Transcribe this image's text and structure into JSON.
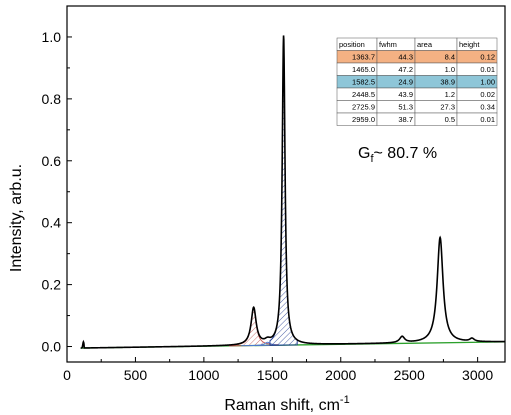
{
  "chart_data": {
    "type": "line",
    "xlabel": "Raman shift, cm",
    "xlabel_sup": "-1",
    "ylabel": "Intensity, arb.u.",
    "xlim": [
      0,
      3200
    ],
    "ylim": [
      -0.05,
      1.1
    ],
    "x_ticks": [
      0,
      500,
      1000,
      1500,
      2000,
      2500,
      3000
    ],
    "y_ticks": [
      0.0,
      0.2,
      0.4,
      0.6,
      0.8,
      1.0
    ],
    "x_tick_labels": [
      "0",
      "500",
      "1000",
      "1500",
      "2000",
      "2500",
      "3000"
    ],
    "y_tick_labels": [
      "0.0",
      "0.2",
      "0.4",
      "0.6",
      "0.8",
      "1.0"
    ],
    "annotation": {
      "prefix": "G",
      "subscript": "f",
      "suffix": "~ 80.7 %"
    },
    "table": {
      "headers": [
        "position",
        "fwhm",
        "area",
        "height"
      ],
      "rows": [
        [
          "1363.7",
          "44.3",
          "8.4",
          "0.12"
        ],
        [
          "1465.0",
          "47.2",
          "1.0",
          "0.01"
        ],
        [
          "1582.5",
          "24.9",
          "38.9",
          "1.00"
        ],
        [
          "2448.5",
          "43.9",
          "1.2",
          "0.02"
        ],
        [
          "2725.9",
          "51.3",
          "27.3",
          "0.34"
        ],
        [
          "2959.0",
          "38.7",
          "0.5",
          "0.01"
        ]
      ],
      "highlight_rows": {
        "0": "#f4b183",
        "2": "#8ec6d8"
      }
    },
    "peaks": [
      {
        "position": 1363.7,
        "fwhm": 44.3,
        "height": 0.12
      },
      {
        "position": 1465.0,
        "fwhm": 47.2,
        "height": 0.01
      },
      {
        "position": 1582.5,
        "fwhm": 24.9,
        "height": 1.0
      },
      {
        "position": 2448.5,
        "fwhm": 43.9,
        "height": 0.02
      },
      {
        "position": 2725.9,
        "fwhm": 51.3,
        "height": 0.34
      },
      {
        "position": 2959.0,
        "fwhm": 38.7,
        "height": 0.01
      }
    ],
    "baseline": {
      "x": [
        100,
        3200
      ],
      "y": [
        -0.005,
        0.015
      ]
    },
    "colors": {
      "spectrum": "#000000",
      "d_band": "#c0504d",
      "d_prime": "#4a7bd0",
      "g_band": "#1f3a93",
      "baseline": "#2ca02c"
    }
  }
}
